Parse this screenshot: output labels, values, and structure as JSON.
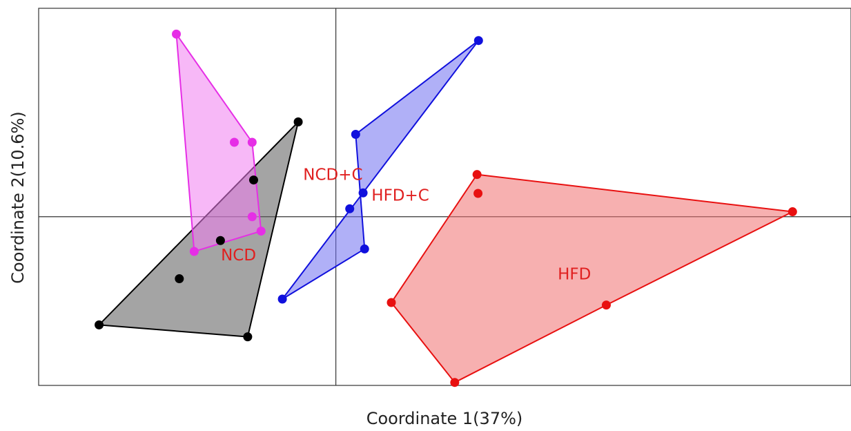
{
  "chart_data": {
    "type": "scatter",
    "title": "",
    "xlabel": "Coordinate 1(37%)",
    "ylabel": "Coordinate 2(10.6%)",
    "xlim": [
      -0.6,
      1.04
    ],
    "ylim": [
      -0.34,
      0.42
    ],
    "grid": false,
    "reference_lines": {
      "x": 0,
      "y": 0
    },
    "series": [
      {
        "name": "NCD",
        "color": "#000000",
        "fill": "#5a5a5a",
        "hull": [
          [
            -0.478,
            -0.218
          ],
          [
            -0.178,
            -0.242
          ],
          [
            -0.076,
            0.191
          ]
        ],
        "points": [
          [
            -0.478,
            -0.218
          ],
          [
            -0.178,
            -0.242
          ],
          [
            -0.076,
            0.191
          ],
          [
            -0.166,
            0.074
          ],
          [
            -0.233,
            -0.048
          ],
          [
            -0.316,
            -0.125
          ]
        ]
      },
      {
        "name": "NCD+C",
        "color": "#e62ee6",
        "fill": "#f07ef0",
        "hull": [
          [
            -0.322,
            0.368
          ],
          [
            -0.169,
            0.15
          ],
          [
            -0.151,
            -0.029
          ],
          [
            -0.286,
            -0.07
          ]
        ],
        "points": [
          [
            -0.322,
            0.368
          ],
          [
            -0.169,
            0.15
          ],
          [
            -0.151,
            -0.029
          ],
          [
            -0.286,
            -0.07
          ],
          [
            -0.205,
            0.15
          ],
          [
            -0.169,
            0.0
          ]
        ]
      },
      {
        "name": "HFD+C",
        "color": "#1010dd",
        "fill": "#6f6ff0",
        "hull": [
          [
            0.288,
            0.355
          ],
          [
            0.04,
            0.166
          ],
          [
            0.058,
            -0.065
          ],
          [
            -0.108,
            -0.166
          ]
        ],
        "points": [
          [
            0.288,
            0.355
          ],
          [
            0.04,
            0.166
          ],
          [
            0.058,
            -0.065
          ],
          [
            -0.108,
            -0.166
          ],
          [
            0.055,
            0.048
          ],
          [
            0.028,
            0.016
          ]
        ]
      },
      {
        "name": "HFD",
        "color": "#e81010",
        "fill": "#f07070",
        "hull": [
          [
            0.285,
            0.085
          ],
          [
            0.922,
            0.01
          ],
          [
            0.546,
            -0.178
          ],
          [
            0.24,
            -0.334
          ],
          [
            0.112,
            -0.173
          ]
        ],
        "points": [
          [
            0.285,
            0.085
          ],
          [
            0.922,
            0.01
          ],
          [
            0.546,
            -0.178
          ],
          [
            0.24,
            -0.334
          ],
          [
            0.112,
            -0.173
          ],
          [
            0.287,
            0.047
          ]
        ]
      }
    ],
    "annotations": [
      {
        "text": "NCD+C",
        "x": -0.066,
        "y": 0.074,
        "color": "#e02020"
      },
      {
        "text": "HFD+C",
        "x": 0.072,
        "y": 0.032,
        "color": "#e02020"
      },
      {
        "text": "NCD",
        "x": -0.232,
        "y": -0.088,
        "color": "#e02020"
      },
      {
        "text": "HFD",
        "x": 0.448,
        "y": -0.126,
        "color": "#e02020"
      }
    ]
  }
}
